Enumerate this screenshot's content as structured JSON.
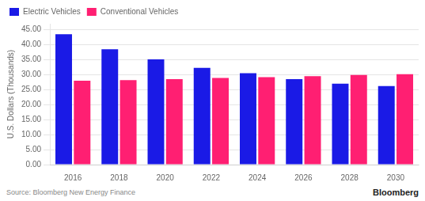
{
  "chart_data": {
    "type": "bar",
    "categories": [
      "2016",
      "2018",
      "2020",
      "2022",
      "2024",
      "2026",
      "2028",
      "2030"
    ],
    "series": [
      {
        "name": "Electric Vehicles",
        "color": "#1A1AE6",
        "values": [
          43.5,
          38.5,
          35.1,
          32.3,
          30.5,
          28.5,
          27.0,
          26.2
        ]
      },
      {
        "name": "Conventional Vehicles",
        "color": "#FF1F72",
        "values": [
          28.0,
          28.2,
          28.5,
          28.9,
          29.2,
          29.5,
          29.9,
          30.2
        ]
      }
    ],
    "y_label": "U.S. Dollars (Thousands)",
    "ylim": [
      0,
      47
    ],
    "yticks": [
      {
        "value": 0,
        "label": "0.00"
      },
      {
        "value": 5,
        "label": "5.00"
      },
      {
        "value": 10,
        "label": "10.00"
      },
      {
        "value": 15,
        "label": "15.00"
      },
      {
        "value": 20,
        "label": "20.00"
      },
      {
        "value": 25,
        "label": "25.00"
      },
      {
        "value": 30,
        "label": "30.00"
      },
      {
        "value": 35,
        "label": "35.00"
      },
      {
        "value": 40,
        "label": "40.00"
      },
      {
        "value": 45,
        "label": "45.00"
      }
    ],
    "grid": true,
    "legend": "top",
    "annotations": [
      "Source: Bloomberg New Energy Finance",
      "Bloomberg"
    ]
  }
}
